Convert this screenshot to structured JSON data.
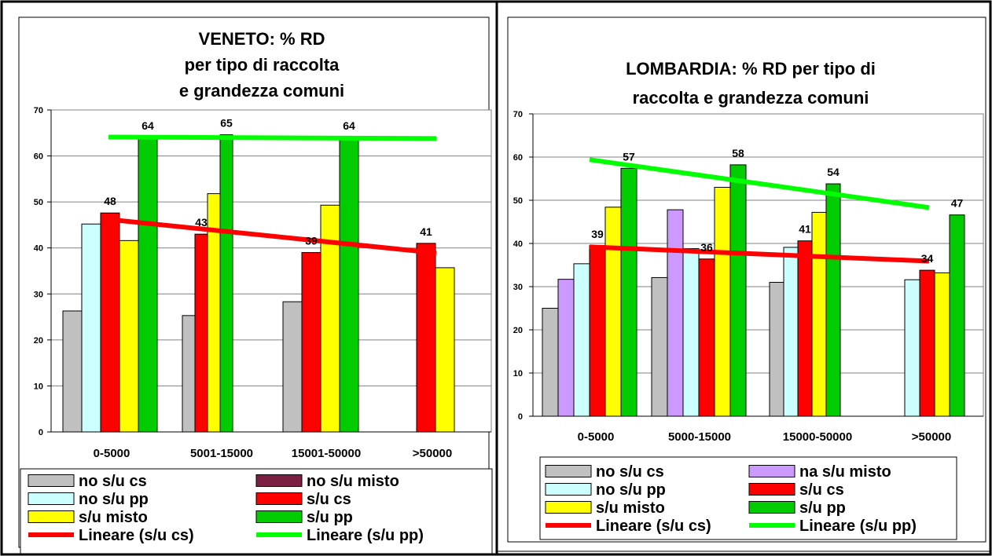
{
  "chart_data": [
    {
      "type": "bar",
      "title": [
        "VENETO: % RD",
        "per tipo di raccolta",
        "e grandezza comuni"
      ],
      "categories": [
        "0-5000",
        "5001-15000",
        "15001-50000",
        ">50000"
      ],
      "ylim": [
        0,
        70
      ],
      "yticks": [
        "0",
        "10",
        "20",
        "30",
        "40",
        "50",
        "60",
        "70"
      ],
      "grid": true,
      "legend_position": "bottom",
      "series": [
        {
          "name": "no s/u cs",
          "color": "#c0c0c0",
          "values": [
            26.3,
            25.3,
            28.3,
            null
          ]
        },
        {
          "name": "no s/u misto",
          "color": "#7b2042",
          "values": [
            null,
            null,
            null,
            null
          ]
        },
        {
          "name": "no s/u pp",
          "color": "#ccffff",
          "values": [
            45.2,
            null,
            null,
            null
          ]
        },
        {
          "name": "s/u cs",
          "color": "#ff0000",
          "values": [
            47.6,
            43,
            39,
            41
          ]
        },
        {
          "name": "s/u misto",
          "color": "#ffff00",
          "values": [
            41.6,
            51.8,
            49.3,
            35.7
          ]
        },
        {
          "name": "s/u pp",
          "color": "#00cc00",
          "values": [
            64,
            64.6,
            64,
            null
          ]
        }
      ],
      "data_labels": [
        {
          "text": "48",
          "cat": 0,
          "series": 3
        },
        {
          "text": "64",
          "cat": 0,
          "series": 5
        },
        {
          "text": "43",
          "cat": 1,
          "series": 3
        },
        {
          "text": "65",
          "cat": 1,
          "series": 5
        },
        {
          "text": "39",
          "cat": 2,
          "series": 3
        },
        {
          "text": "64",
          "cat": 2,
          "series": 5
        },
        {
          "text": "41",
          "cat": 3,
          "series": 3
        }
      ],
      "trendlines": [
        {
          "name": "Lineare (s/u cs)",
          "color": "#ff0000",
          "from": 46.2,
          "to": 38.9
        },
        {
          "name": "Lineare (s/u pp)",
          "color": "#00ff00",
          "from": 64.1,
          "to": 63.8
        }
      ]
    },
    {
      "type": "bar",
      "title": [
        "LOMBARDIA: % RD per tipo di",
        "raccolta e grandezza comuni"
      ],
      "categories": [
        "0-5000",
        "5000-15000",
        "15000-50000",
        ">50000"
      ],
      "ylim": [
        0,
        70
      ],
      "yticks": [
        "0",
        "10",
        "20",
        "30",
        "40",
        "50",
        "60",
        "70"
      ],
      "grid": true,
      "legend_position": "bottom",
      "series": [
        {
          "name": "no s/u cs",
          "color": "#c0c0c0",
          "values": [
            25,
            32.1,
            31,
            null
          ]
        },
        {
          "name": "na s/u misto",
          "color": "#cc99ff",
          "values": [
            31.7,
            47.8,
            null,
            null
          ]
        },
        {
          "name": "no s/u pp",
          "color": "#ccffff",
          "values": [
            35.3,
            38.8,
            39.1,
            31.6
          ]
        },
        {
          "name": "s/u cs",
          "color": "#ff0000",
          "values": [
            39.5,
            36.4,
            40.6,
            33.8
          ]
        },
        {
          "name": "s/u misto",
          "color": "#ffff00",
          "values": [
            48.4,
            53,
            47.2,
            33.2
          ]
        },
        {
          "name": "s/u pp",
          "color": "#00cc00",
          "values": [
            57.4,
            58.2,
            53.8,
            46.6
          ]
        }
      ],
      "data_labels": [
        {
          "text": "39",
          "cat": 0,
          "series": 3
        },
        {
          "text": "57",
          "cat": 0,
          "series": 5
        },
        {
          "text": "36",
          "cat": 1,
          "series": 3
        },
        {
          "text": "58",
          "cat": 1,
          "series": 5
        },
        {
          "text": "41",
          "cat": 2,
          "series": 3
        },
        {
          "text": "54",
          "cat": 2,
          "series": 5
        },
        {
          "text": "34",
          "cat": 3,
          "series": 3
        },
        {
          "text": "47",
          "cat": 3,
          "series": 5
        }
      ],
      "trendlines": [
        {
          "name": "Lineare (s/u cs)",
          "color": "#ff0000",
          "from": 39.2,
          "to": 35.9
        },
        {
          "name": "Lineare (s/u pp)",
          "color": "#00ff00",
          "from": 59.4,
          "to": 48.3
        }
      ]
    }
  ]
}
